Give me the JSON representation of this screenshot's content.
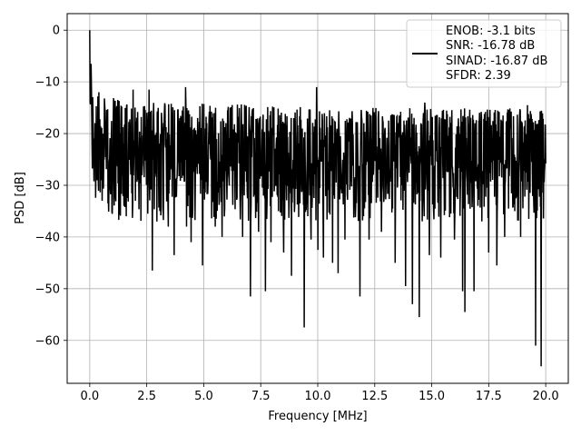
{
  "chart_data": {
    "type": "line",
    "title": "",
    "xlabel": "Frequency [MHz]",
    "ylabel": "PSD [dB]",
    "xlim": [
      -0.99,
      20.99
    ],
    "ylim": [
      -68.3,
      3.2
    ],
    "xticks": [
      0.0,
      2.5,
      5.0,
      7.5,
      10.0,
      12.5,
      15.0,
      17.5,
      20.0
    ],
    "xtick_labels": [
      "0.0",
      "2.5",
      "5.0",
      "7.5",
      "10.0",
      "12.5",
      "15.0",
      "17.5",
      "20.0"
    ],
    "yticks": [
      0,
      -10,
      -20,
      -30,
      -40,
      -50,
      -60
    ],
    "ytick_labels": [
      "0",
      "−10",
      "−20",
      "−30",
      "−40",
      "−50",
      "−60"
    ],
    "grid": true,
    "legend": {
      "position": "top-right",
      "entries": [
        "ENOB: -3.1 bits",
        "SNR: -16.78 dB",
        "SINAD: -16.87 dB",
        "SFDR: 2.39"
      ]
    },
    "series_color": "#000000",
    "x_range": [
      0.0,
      20.0
    ],
    "num_points": 1400,
    "trend": {
      "x": [
        0.0,
        0.05,
        0.15,
        0.3,
        0.6,
        1.0,
        2.0,
        5.0,
        10.0,
        15.0,
        20.0
      ],
      "upper": [
        0.0,
        -7,
        -10,
        -12,
        -13,
        -13,
        -14,
        -14,
        -15,
        -15,
        -15
      ],
      "median": [
        -7,
        -13,
        -18,
        -22,
        -24,
        -25,
        -25,
        -25,
        -25,
        -25,
        -25
      ]
    },
    "dips": [
      {
        "x": 0.5,
        "y": -28
      },
      {
        "x": 0.55,
        "y": -33
      },
      {
        "x": 0.8,
        "y": -33.5
      },
      {
        "x": 1.0,
        "y": -32
      },
      {
        "x": 1.5,
        "y": -34
      },
      {
        "x": 1.6,
        "y": -36
      },
      {
        "x": 2.0,
        "y": -33
      },
      {
        "x": 2.55,
        "y": -35.5
      },
      {
        "x": 2.75,
        "y": -46.5
      },
      {
        "x": 2.95,
        "y": -37
      },
      {
        "x": 3.45,
        "y": -38
      },
      {
        "x": 3.7,
        "y": -43.5
      },
      {
        "x": 4.25,
        "y": -38
      },
      {
        "x": 4.45,
        "y": -41
      },
      {
        "x": 4.95,
        "y": -45.5
      },
      {
        "x": 5.5,
        "y": -38
      },
      {
        "x": 5.8,
        "y": -40
      },
      {
        "x": 6.7,
        "y": -40
      },
      {
        "x": 7.05,
        "y": -51.5
      },
      {
        "x": 7.4,
        "y": -39
      },
      {
        "x": 7.7,
        "y": -50.5
      },
      {
        "x": 7.95,
        "y": -41
      },
      {
        "x": 8.5,
        "y": -43
      },
      {
        "x": 8.85,
        "y": -47.5
      },
      {
        "x": 9.4,
        "y": -57.5
      },
      {
        "x": 9.7,
        "y": -40.5
      },
      {
        "x": 10.0,
        "y": -42.5
      },
      {
        "x": 10.25,
        "y": -44
      },
      {
        "x": 10.65,
        "y": -45
      },
      {
        "x": 10.9,
        "y": -47
      },
      {
        "x": 11.2,
        "y": -40.5
      },
      {
        "x": 11.85,
        "y": -51.5
      },
      {
        "x": 12.25,
        "y": -40.5
      },
      {
        "x": 12.8,
        "y": -39
      },
      {
        "x": 13.4,
        "y": -45
      },
      {
        "x": 13.85,
        "y": -49.5
      },
      {
        "x": 14.15,
        "y": -53
      },
      {
        "x": 14.45,
        "y": -55.5
      },
      {
        "x": 14.9,
        "y": -43.5
      },
      {
        "x": 15.4,
        "y": -44
      },
      {
        "x": 16.0,
        "y": -40.5
      },
      {
        "x": 16.35,
        "y": -50.5
      },
      {
        "x": 16.45,
        "y": -54.5
      },
      {
        "x": 16.85,
        "y": -50.5
      },
      {
        "x": 17.5,
        "y": -43
      },
      {
        "x": 17.85,
        "y": -45.5
      },
      {
        "x": 18.2,
        "y": -40
      },
      {
        "x": 18.9,
        "y": -40
      },
      {
        "x": 19.55,
        "y": -61
      },
      {
        "x": 19.8,
        "y": -65
      }
    ],
    "peaks": [
      {
        "x": 0.0,
        "y": 0.0
      },
      {
        "x": 0.06,
        "y": -6.5
      },
      {
        "x": 0.4,
        "y": -12
      },
      {
        "x": 1.9,
        "y": -11.5
      },
      {
        "x": 2.6,
        "y": -11.5
      },
      {
        "x": 4.2,
        "y": -11
      },
      {
        "x": 9.95,
        "y": -11
      },
      {
        "x": 14.7,
        "y": -14
      },
      {
        "x": 19.2,
        "y": -14.5
      }
    ]
  }
}
